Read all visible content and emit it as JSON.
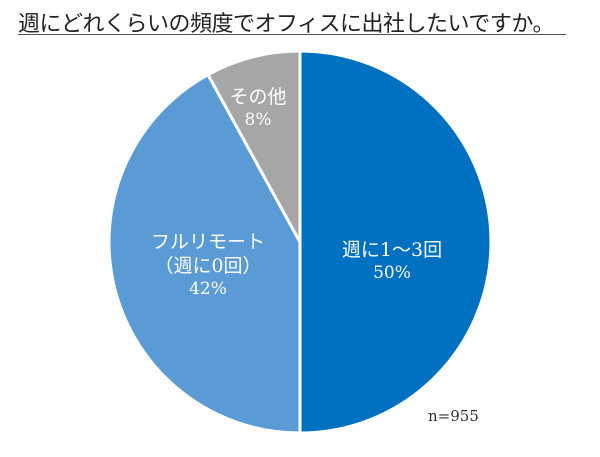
{
  "chart_data": {
    "type": "pie",
    "title": "週にどれくらいの頻度でオフィスに出社したいですか。",
    "categories": [
      "週に1〜3回",
      "フルリモート（週に0回）",
      "その他"
    ],
    "values": [
      50,
      42,
      8
    ],
    "unit": "%",
    "colors": [
      "#0070c0",
      "#5b9bd5",
      "#a6a6a6"
    ],
    "start_angle": "12 o'clock, clockwise",
    "annotation": "n=955",
    "legend": "none (data labels inside slices)"
  },
  "labels": {
    "s1_cat": "週に1〜3回",
    "s1_pct": "50%",
    "s2_cat1": "フルリモート",
    "s2_cat2": "（週に0回）",
    "s2_pct": "42%",
    "s3_cat": "その他",
    "s3_pct": "8%"
  },
  "sample_size": "n=955"
}
